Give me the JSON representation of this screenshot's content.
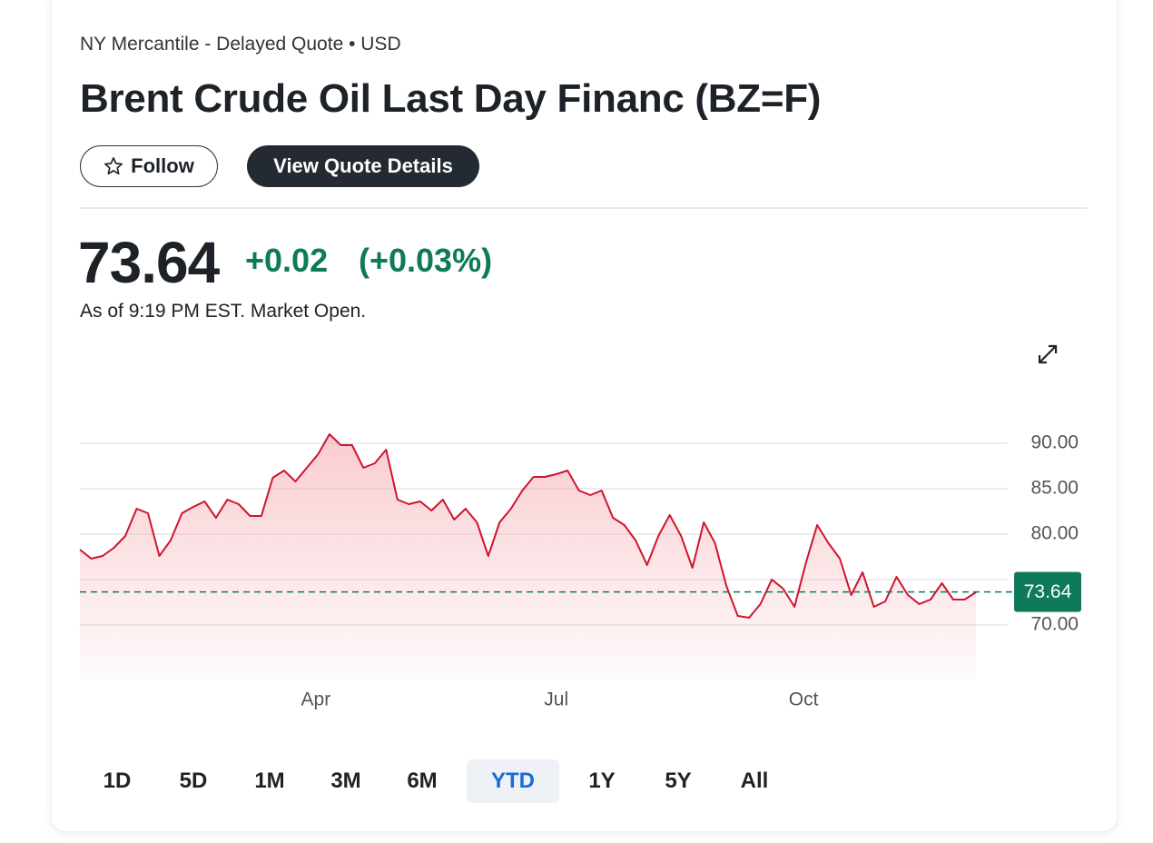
{
  "quote": {
    "exchange": "NY Mercantile - Delayed Quote • USD",
    "title": "Brent Crude Oil Last Day Financ (BZ=F)",
    "follow": "Follow",
    "details": "View Quote Details",
    "price": "73.64",
    "change": "+0.02",
    "change_pct": "(+0.03%)",
    "status": "As of 9:19 PM EST. Market Open.",
    "ranges": [
      "1D",
      "5D",
      "1M",
      "3M",
      "6M",
      "YTD",
      "1Y",
      "5Y",
      "All"
    ],
    "selected_range": "YTD"
  },
  "chart_data": {
    "type": "line",
    "color": "#d0142c",
    "values": [
      78.3,
      77.3,
      77.6,
      78.5,
      79.8,
      82.8,
      82.3,
      77.6,
      79.3,
      82.3,
      83.0,
      83.6,
      81.8,
      83.8,
      83.3,
      82.0,
      82.0,
      86.2,
      87.0,
      85.8,
      87.3,
      88.8,
      91.0,
      89.8,
      89.8,
      87.3,
      87.8,
      89.3,
      83.8,
      83.3,
      83.6,
      82.6,
      83.8,
      81.6,
      82.8,
      81.3,
      77.6,
      81.3,
      82.8,
      84.8,
      86.3,
      86.3,
      86.6,
      87.0,
      84.8,
      84.3,
      84.8,
      81.8,
      81.0,
      79.3,
      76.6,
      79.8,
      82.1,
      79.8,
      76.3,
      81.3,
      79.0,
      74.3,
      71.0,
      70.8,
      72.3,
      75.0,
      74.0,
      72.0,
      76.8,
      81.0,
      79.0,
      77.3,
      73.3,
      75.8,
      72.0,
      72.6,
      75.3,
      73.3,
      72.3,
      72.8,
      74.6,
      72.8,
      72.8,
      73.6
    ],
    "xlim": [
      0,
      79
    ],
    "xticks": [
      {
        "value": 20.8,
        "label": "Apr"
      },
      {
        "value": 42,
        "label": "Jul"
      },
      {
        "value": 63.8,
        "label": "Oct"
      }
    ],
    "ylim": [
      64,
      93
    ],
    "yticks": [
      {
        "value": 70,
        "label": "70.00"
      },
      {
        "value": 75,
        "label": null
      },
      {
        "value": 80,
        "label": "80.00"
      },
      {
        "value": 85,
        "label": "85.00"
      },
      {
        "value": 90,
        "label": "90.00"
      }
    ],
    "grid": true,
    "last_price": 73.64,
    "last_price_color": "#0e7a5a"
  }
}
